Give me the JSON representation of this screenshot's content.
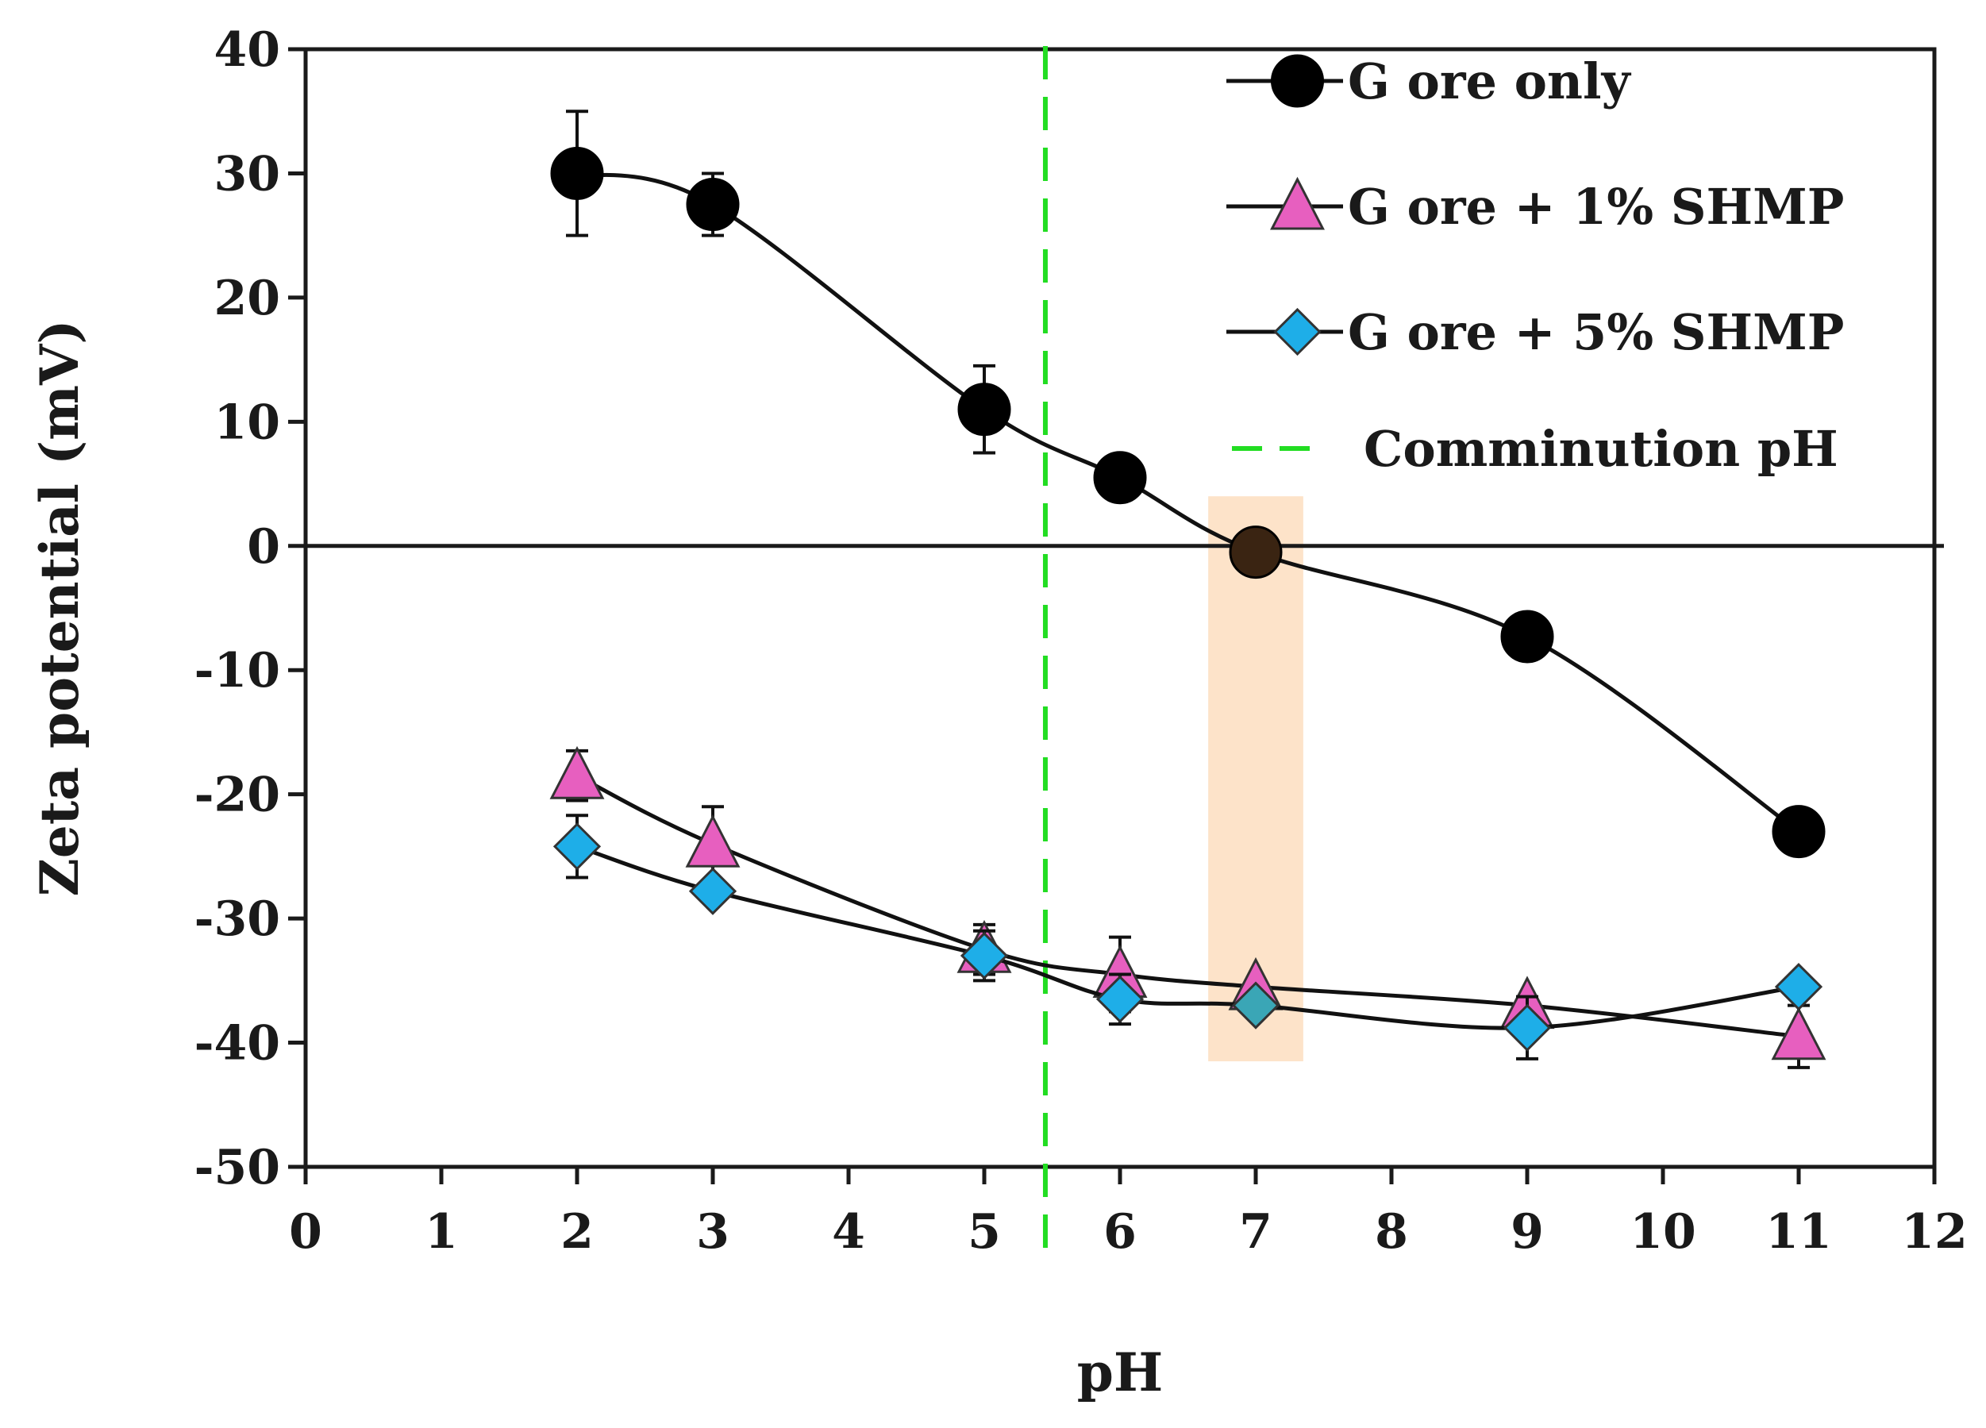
{
  "chart_data": {
    "type": "line",
    "title": "",
    "xlabel": "pH",
    "ylabel": "Zeta potential (mV)",
    "xlim": [
      0,
      12
    ],
    "ylim": [
      -50,
      40
    ],
    "x_ticks": [
      "0",
      "1",
      "2",
      "3",
      "4",
      "5",
      "6",
      "7",
      "8",
      "9",
      "10",
      "11",
      "12"
    ],
    "y_ticks": [
      "40",
      "30",
      "20",
      "10",
      "0",
      "-10",
      "-20",
      "-30",
      "-40",
      "-50"
    ],
    "x_tick_values": [
      0,
      1,
      2,
      3,
      4,
      5,
      6,
      7,
      8,
      9,
      10,
      11,
      12
    ],
    "y_tick_values": [
      40,
      30,
      20,
      10,
      0,
      -10,
      -20,
      -30,
      -40,
      -50
    ],
    "grid": false,
    "legend_position": "top-right",
    "series": [
      {
        "name": "G ore only",
        "marker": "circle",
        "color": "#000000",
        "x": [
          2,
          3,
          5,
          6,
          7,
          9,
          11
        ],
        "y": [
          30,
          27.5,
          11,
          5.5,
          -0.5,
          -7.3,
          -23
        ],
        "err": [
          5,
          2.5,
          3.5,
          0,
          0,
          0,
          0
        ]
      },
      {
        "name": "G ore + 1% SHMP",
        "marker": "triangle",
        "color": "#e75fbf",
        "x": [
          2,
          3,
          5,
          6,
          7,
          9,
          11
        ],
        "y": [
          -18.5,
          -24,
          -32.5,
          -34.5,
          -35.5,
          -37,
          -39.5
        ],
        "err": [
          2,
          3,
          2,
          3,
          0,
          0,
          2.5
        ]
      },
      {
        "name": "G ore + 5% SHMP",
        "marker": "diamond",
        "color": "#1eaee8",
        "x": [
          2,
          3,
          5,
          6,
          7,
          9,
          11
        ],
        "y": [
          -24.2,
          -27.8,
          -33,
          -36.5,
          -37,
          -38.8,
          -35.5
        ],
        "err": [
          2.5,
          0,
          2,
          2,
          0,
          2.5,
          0
        ]
      }
    ],
    "reference_line": {
      "name": "Comminution pH",
      "x": 5.45,
      "color": "#22dd22",
      "style": "dashed"
    },
    "highlight_band": {
      "x_range": [
        6.65,
        7.35
      ],
      "y_range": [
        -41.5,
        4
      ],
      "color": "#fde3c9"
    },
    "zero_line": {
      "y": 0
    },
    "highlighted_point": {
      "series": 2,
      "x": 7,
      "color": "#3aa6b6"
    },
    "highlighted_point_0": {
      "series": 0,
      "x": 7,
      "color": "#3a2412"
    }
  }
}
